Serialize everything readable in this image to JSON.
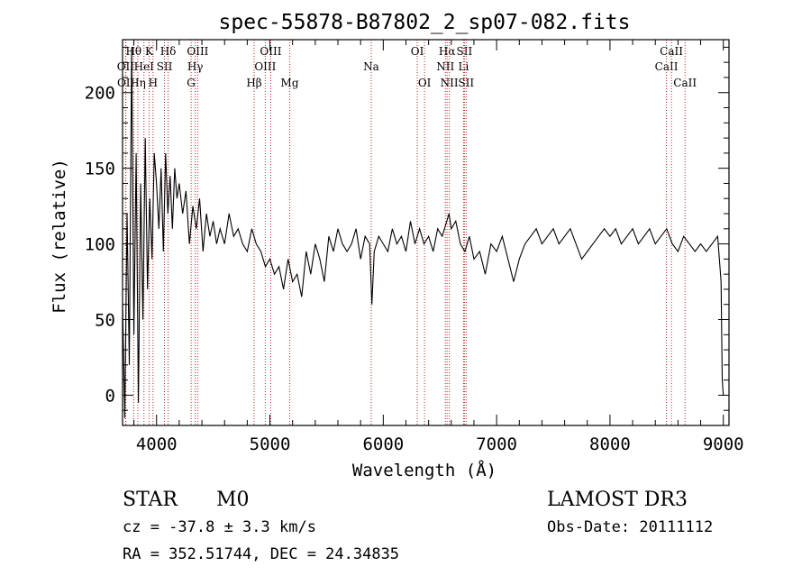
{
  "chart_data": {
    "type": "line",
    "title": "spec-55878-B87802_2_sp07-082.fits",
    "xlabel": "Wavelength (Å)",
    "ylabel": "Flux (relative)",
    "xlim": [
      3700,
      9050
    ],
    "ylim": [
      -20,
      235
    ],
    "x_ticks": [
      4000,
      5000,
      6000,
      7000,
      8000,
      9000
    ],
    "y_ticks": [
      0,
      50,
      100,
      150,
      200
    ],
    "grid": false,
    "series": [
      {
        "color": "#000000",
        "x": [
          3700,
          3720,
          3740,
          3760,
          3780,
          3800,
          3820,
          3840,
          3860,
          3880,
          3900,
          3920,
          3940,
          3960,
          3980,
          4000,
          4020,
          4040,
          4060,
          4080,
          4100,
          4120,
          4140,
          4160,
          4180,
          4200,
          4230,
          4260,
          4290,
          4320,
          4350,
          4380,
          4410,
          4440,
          4470,
          4500,
          4530,
          4560,
          4600,
          4640,
          4680,
          4720,
          4760,
          4800,
          4840,
          4880,
          4920,
          4960,
          5000,
          5040,
          5080,
          5120,
          5160,
          5200,
          5240,
          5280,
          5320,
          5360,
          5400,
          5440,
          5480,
          5520,
          5560,
          5600,
          5640,
          5680,
          5720,
          5760,
          5800,
          5840,
          5880,
          5900,
          5920,
          5960,
          6000,
          6040,
          6080,
          6120,
          6160,
          6200,
          6240,
          6280,
          6320,
          6360,
          6400,
          6440,
          6480,
          6520,
          6560,
          6580,
          6600,
          6640,
          6680,
          6720,
          6760,
          6800,
          6850,
          6900,
          6950,
          7000,
          7050,
          7100,
          7150,
          7200,
          7250,
          7300,
          7350,
          7400,
          7450,
          7500,
          7550,
          7600,
          7650,
          7700,
          7750,
          7800,
          7850,
          7900,
          7950,
          8000,
          8050,
          8100,
          8150,
          8200,
          8250,
          8300,
          8350,
          8400,
          8450,
          8500,
          8550,
          8600,
          8650,
          8700,
          8750,
          8800,
          8850,
          8900,
          8950,
          8980,
          8990,
          9000
        ],
        "y": [
          60,
          -15,
          120,
          20,
          230,
          40,
          160,
          -5,
          140,
          50,
          170,
          70,
          130,
          90,
          160,
          140,
          110,
          150,
          95,
          160,
          120,
          145,
          110,
          150,
          130,
          140,
          120,
          135,
          100,
          125,
          110,
          130,
          95,
          120,
          105,
          115,
          100,
          110,
          100,
          120,
          105,
          110,
          100,
          95,
          110,
          100,
          95,
          85,
          90,
          80,
          85,
          70,
          90,
          75,
          80,
          65,
          95,
          80,
          100,
          90,
          75,
          105,
          95,
          110,
          100,
          95,
          100,
          110,
          90,
          105,
          100,
          60,
          95,
          105,
          100,
          95,
          110,
          100,
          105,
          95,
          115,
          100,
          110,
          100,
          105,
          95,
          110,
          105,
          115,
          120,
          110,
          115,
          100,
          95,
          105,
          90,
          95,
          80,
          100,
          95,
          105,
          90,
          75,
          90,
          100,
          105,
          110,
          100,
          105,
          110,
          100,
          105,
          110,
          100,
          90,
          95,
          100,
          105,
          110,
          105,
          110,
          100,
          105,
          110,
          100,
          105,
          110,
          100,
          105,
          110,
          100,
          95,
          105,
          100,
          95,
          100,
          95,
          100,
          105,
          75,
          10,
          0
        ]
      }
    ],
    "line_markers": [
      {
        "label": "Hθ",
        "x": 3798,
        "row": 1
      },
      {
        "label": "OII",
        "x": 3727,
        "row": 2
      },
      {
        "label": "OII",
        "x": 3729,
        "row": 3
      },
      {
        "label": "Hη",
        "x": 3835,
        "row": 3
      },
      {
        "label": "K",
        "x": 3934,
        "row": 1
      },
      {
        "label": "H",
        "x": 3969,
        "row": 3
      },
      {
        "label": "HeI",
        "x": 3889,
        "row": 2
      },
      {
        "label": "SII",
        "x": 4070,
        "row": 2
      },
      {
        "label": "Hδ",
        "x": 4102,
        "row": 1
      },
      {
        "label": "OIII",
        "x": 4363,
        "row": 1
      },
      {
        "label": "Hγ",
        "x": 4341,
        "row": 2
      },
      {
        "label": "G",
        "x": 4305,
        "row": 3
      },
      {
        "label": "Hβ",
        "x": 4861,
        "row": 3
      },
      {
        "label": "OIII",
        "x": 4959,
        "row": 2
      },
      {
        "label": "OIII",
        "x": 5007,
        "row": 1
      },
      {
        "label": "Mg",
        "x": 5175,
        "row": 3
      },
      {
        "label": "Na",
        "x": 5894,
        "row": 2
      },
      {
        "label": "OI",
        "x": 6300,
        "row": 1
      },
      {
        "label": "OI",
        "x": 6364,
        "row": 3
      },
      {
        "label": "NII",
        "x": 6548,
        "row": 2
      },
      {
        "label": "Hα",
        "x": 6563,
        "row": 1
      },
      {
        "label": "NII",
        "x": 6583,
        "row": 3
      },
      {
        "label": "SII",
        "x": 6716,
        "row": 1
      },
      {
        "label": "Li",
        "x": 6708,
        "row": 2
      },
      {
        "label": "SII",
        "x": 6731,
        "row": 3
      },
      {
        "label": "CaII",
        "x": 8498,
        "row": 2
      },
      {
        "label": "CaII",
        "x": 8542,
        "row": 1
      },
      {
        "label": "CaII",
        "x": 8662,
        "row": 3
      }
    ]
  },
  "info": {
    "object_class": "STAR",
    "subclass": "M0",
    "survey": "LAMOST DR3",
    "cz": "cz = -37.8 ± 3.3 km/s",
    "obs_date": "Obs-Date: 20111112",
    "coords": "RA = 352.51744, DEC =  24.34835"
  }
}
